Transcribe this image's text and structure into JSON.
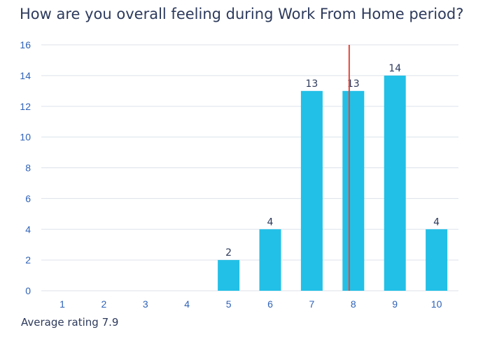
{
  "title": "How are you overall feeling during Work From Home period?",
  "footer": "Average rating 7.9",
  "colors": {
    "bar": "#22c0e6",
    "average_line": "#e2473b",
    "grid": "#dde2ea",
    "tick": "#2e62b8",
    "text": "#2d3a5c"
  },
  "chart_data": {
    "type": "bar",
    "title": "How are you overall feeling during Work From Home period?",
    "categories": [
      "1",
      "2",
      "3",
      "4",
      "5",
      "6",
      "7",
      "8",
      "9",
      "10"
    ],
    "values": [
      0,
      0,
      0,
      0,
      2,
      4,
      13,
      13,
      14,
      4
    ],
    "data_labels": [
      "",
      "",
      "",
      "",
      "2",
      "4",
      "13",
      "13",
      "14",
      "4"
    ],
    "ylim": [
      0,
      16
    ],
    "yticks": [
      0,
      2,
      4,
      6,
      8,
      10,
      12,
      14,
      16
    ],
    "grid": true,
    "average": 7.9,
    "average_label": "Average rating 7.9",
    "xlabel": "",
    "ylabel": ""
  }
}
